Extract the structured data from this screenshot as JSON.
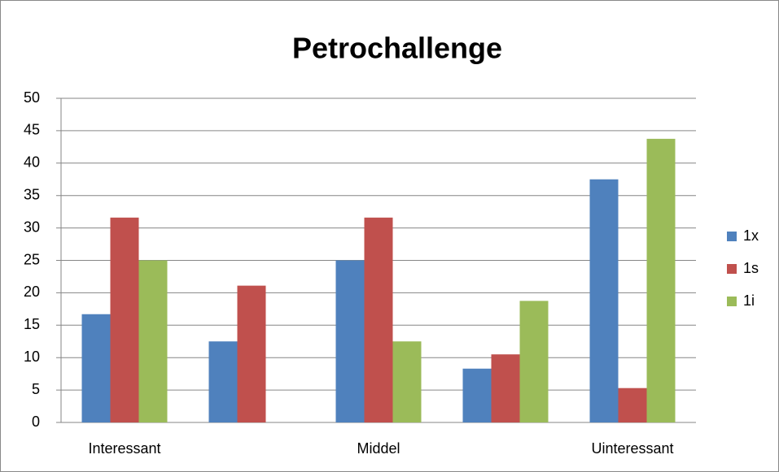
{
  "chart_data": {
    "type": "bar",
    "title": "Petrochallenge",
    "categories": [
      "Interessant",
      null,
      "Middel",
      null,
      "Uinteressant"
    ],
    "series": [
      {
        "name": "1x",
        "color": "#4f81bd",
        "values": [
          16.7,
          12.5,
          25,
          8.3,
          37.5
        ]
      },
      {
        "name": "1s",
        "color": "#c0504d",
        "values": [
          31.6,
          21.1,
          31.6,
          10.5,
          5.3
        ]
      },
      {
        "name": "1i",
        "color": "#9bbb59",
        "values": [
          25,
          0,
          12.5,
          18.75,
          43.75
        ]
      }
    ],
    "ylim": [
      0,
      50
    ],
    "yticks": [
      0,
      5,
      10,
      15,
      20,
      25,
      30,
      35,
      40,
      45,
      50
    ],
    "grid": true,
    "legend": "right"
  }
}
